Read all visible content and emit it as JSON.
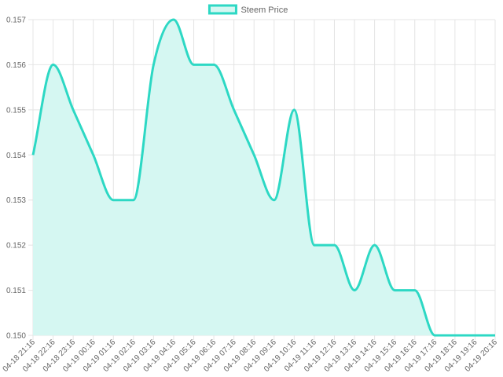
{
  "chart_data": {
    "type": "area",
    "title": "",
    "xlabel": "",
    "ylabel": "",
    "legend": {
      "position": "top-center",
      "entries": [
        "Steem Price"
      ]
    },
    "grid": true,
    "ylim": [
      0.15,
      0.157
    ],
    "y_ticks": [
      "0.150",
      "0.151",
      "0.152",
      "0.153",
      "0.154",
      "0.155",
      "0.156",
      "0.157"
    ],
    "categories": [
      "04-18 21:16",
      "04-18 22:16",
      "04-18 23:16",
      "04-19 00:16",
      "04-19 01:16",
      "04-19 02:16",
      "04-19 03:16",
      "04-19 04:16",
      "04-19 05:16",
      "04-19 06:16",
      "04-19 07:16",
      "04-19 08:16",
      "04-19 09:16",
      "04-19 10:16",
      "04-19 11:16",
      "04-19 12:16",
      "04-19 13:16",
      "04-19 14:16",
      "04-19 15:16",
      "04-19 16:16",
      "04-19 17:16",
      "04-19 18:16",
      "04-19 19:16",
      "04-19 20:16"
    ],
    "series": [
      {
        "name": "Steem Price",
        "color": "#2dd8c4",
        "fill": "#d5f7f2",
        "values": [
          0.154,
          0.156,
          0.155,
          0.154,
          0.153,
          0.153,
          0.156,
          0.157,
          0.156,
          0.156,
          0.155,
          0.154,
          0.153,
          0.155,
          0.152,
          0.152,
          0.151,
          0.152,
          0.151,
          0.151,
          0.15,
          0.15,
          0.15,
          0.15
        ]
      }
    ]
  }
}
